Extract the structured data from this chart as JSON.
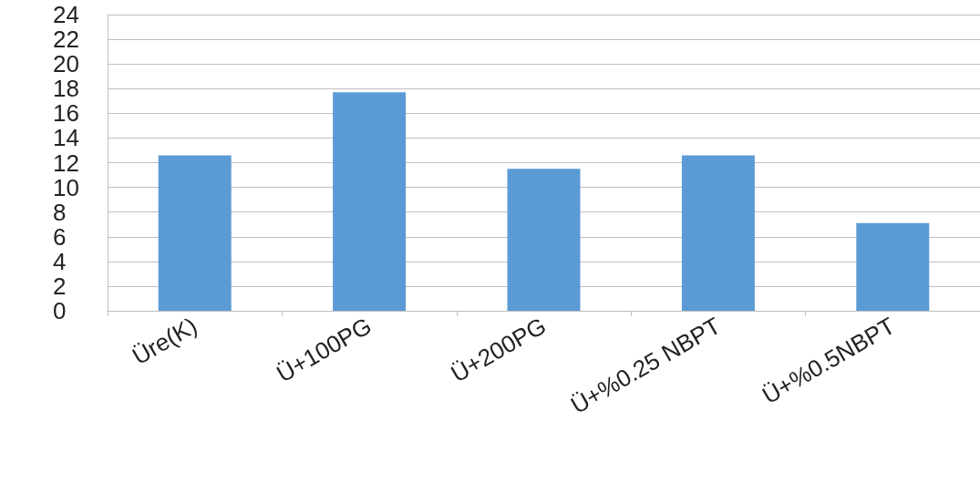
{
  "chart_data": {
    "type": "bar",
    "categories": [
      "Üre(K)",
      "Ü+100PG",
      "Ü+200PG",
      "Ü+%0.25 NBPT",
      "Ü+%0.5NBPT"
    ],
    "values": [
      12.6,
      17.7,
      11.5,
      12.6,
      7.1
    ],
    "color": "#5b9bd5",
    "ylim": [
      0,
      24
    ],
    "yticks": [
      0,
      2,
      4,
      6,
      8,
      10,
      12,
      14,
      16,
      18,
      20,
      22,
      24
    ],
    "grid": "y"
  }
}
